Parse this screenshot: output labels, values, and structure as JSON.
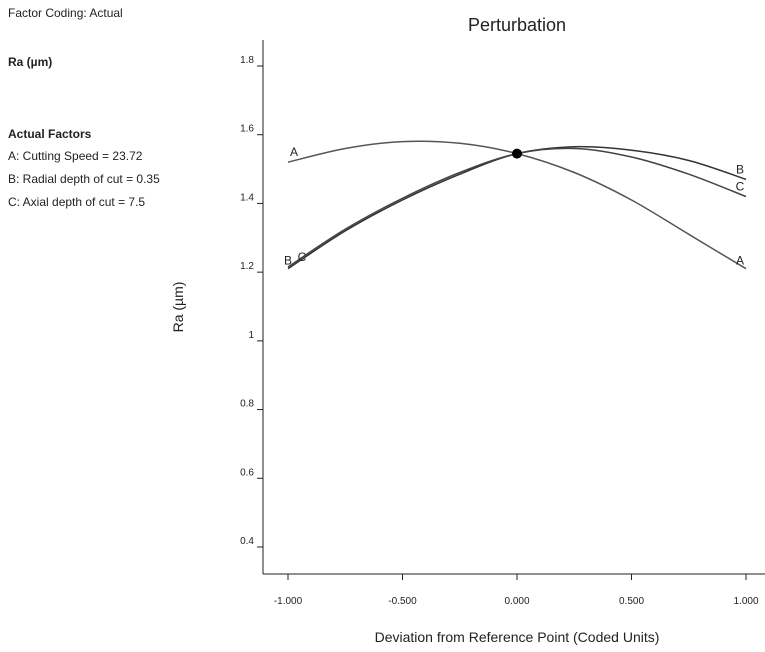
{
  "side_panel": {
    "factor_coding": "Factor Coding: Actual",
    "response": "Ra (µm)",
    "actual_factors_title": "Actual Factors",
    "factors": [
      "A: Cutting Speed = 23.72",
      "B: Radial depth of cut = 0.35",
      "C: Axial depth of cut = 7.5"
    ]
  },
  "chart_data": {
    "type": "line",
    "title": "Perturbation",
    "xlabel": "Deviation from Reference Point (Coded Units)",
    "ylabel": "Ra (µm)",
    "xlim": [
      -1.0,
      1.0
    ],
    "ylim": [
      0.4,
      1.8
    ],
    "x_ticks": [
      "-1.000",
      "-0.500",
      "0.000",
      "0.500",
      "1.000"
    ],
    "y_ticks": [
      "0.4",
      "0.6",
      "0.8",
      "1",
      "1.2",
      "1.4",
      "1.6",
      "1.8"
    ],
    "x_tick_values": [
      -1.0,
      -0.5,
      0.0,
      0.5,
      1.0
    ],
    "y_tick_values": [
      0.4,
      0.6,
      0.8,
      1.0,
      1.2,
      1.4,
      1.6,
      1.8
    ],
    "reference_point": {
      "x": 0.0,
      "y": 1.545
    },
    "series": [
      {
        "name": "A",
        "x": [
          -1.0,
          -0.75,
          -0.5,
          -0.25,
          0.0,
          0.25,
          0.5,
          0.75,
          1.0
        ],
        "values": [
          1.52,
          1.56,
          1.58,
          1.575,
          1.545,
          1.49,
          1.41,
          1.31,
          1.21
        ],
        "color": "#555555"
      },
      {
        "name": "B",
        "x": [
          -1.0,
          -0.75,
          -0.5,
          -0.25,
          0.0,
          0.25,
          0.5,
          0.75,
          1.0
        ],
        "values": [
          1.21,
          1.32,
          1.41,
          1.485,
          1.545,
          1.565,
          1.555,
          1.525,
          1.47
        ],
        "color": "#333333"
      },
      {
        "name": "C",
        "x": [
          -1.0,
          -0.75,
          -0.5,
          -0.25,
          0.0,
          0.25,
          0.5,
          0.75,
          1.0
        ],
        "values": [
          1.215,
          1.325,
          1.415,
          1.49,
          1.545,
          1.56,
          1.535,
          1.485,
          1.42
        ],
        "color": "#444444"
      }
    ]
  }
}
